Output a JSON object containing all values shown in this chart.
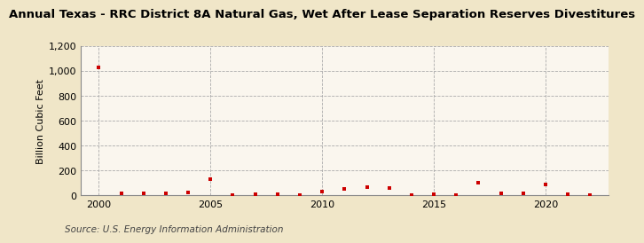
{
  "title": "Annual Texas - RRC District 8A Natural Gas, Wet After Lease Separation Reserves Divestitures",
  "ylabel": "Billion Cubic Feet",
  "source": "Source: U.S. Energy Information Administration",
  "background_color": "#f0e6c8",
  "plot_background_color": "#faf6ee",
  "marker_color": "#cc0000",
  "years": [
    2000,
    2001,
    2002,
    2003,
    2004,
    2005,
    2006,
    2007,
    2008,
    2009,
    2010,
    2011,
    2012,
    2013,
    2014,
    2015,
    2016,
    2017,
    2018,
    2019,
    2020,
    2021,
    2022
  ],
  "values": [
    1030,
    15,
    20,
    15,
    25,
    130,
    5,
    10,
    8,
    5,
    30,
    55,
    65,
    60,
    5,
    10,
    5,
    105,
    15,
    15,
    90,
    10,
    5
  ],
  "ylim": [
    0,
    1200
  ],
  "yticks": [
    0,
    200,
    400,
    600,
    800,
    1000,
    1200
  ],
  "ytick_labels": [
    "0",
    "200",
    "400",
    "600",
    "800",
    "1,000",
    "1,200"
  ],
  "xlim": [
    1999.2,
    2022.8
  ],
  "xticks": [
    2000,
    2005,
    2010,
    2015,
    2020
  ],
  "grid_color": "#aaaaaa",
  "title_fontsize": 9.5,
  "axis_fontsize": 8,
  "source_fontsize": 7.5
}
